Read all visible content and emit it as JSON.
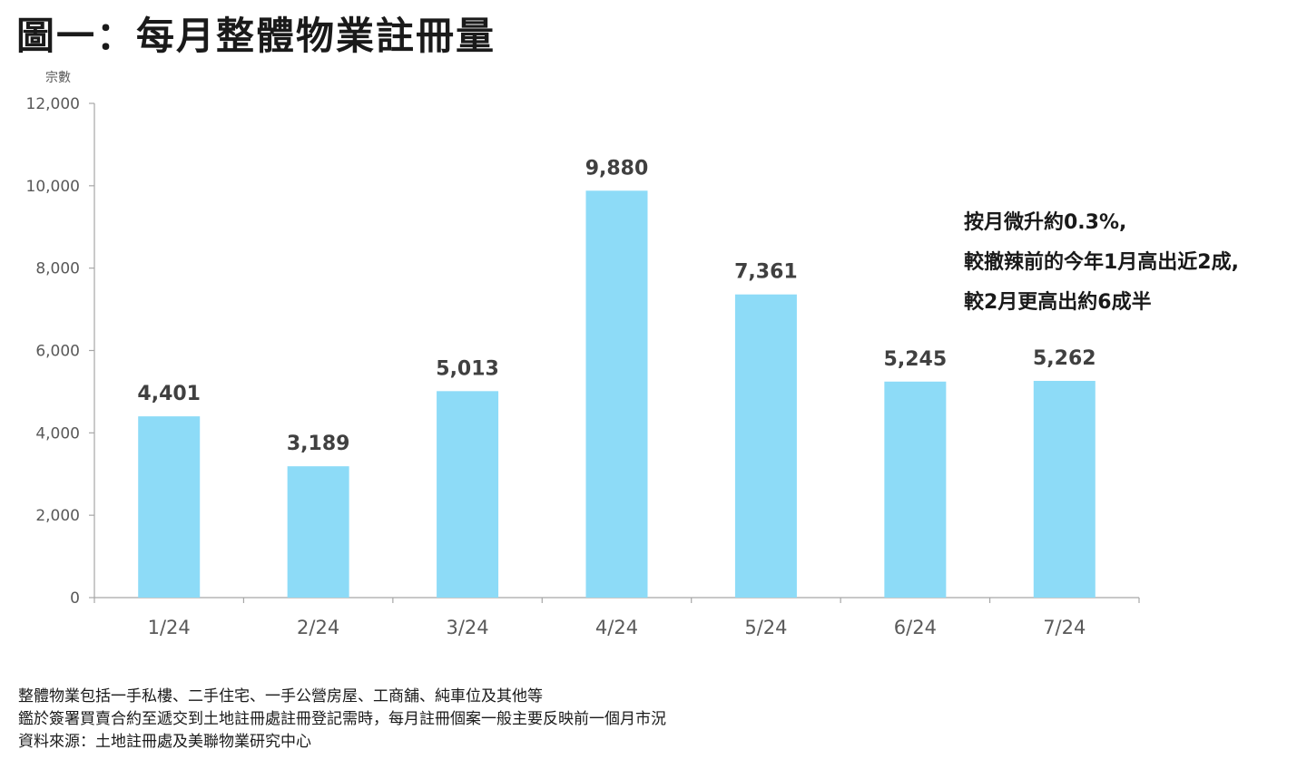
{
  "title": "圖一：每月整體物業註冊量",
  "annotation": {
    "lines": [
      "按月微升約0.3%,",
      "較撤辣前的今年1月高出近2成,",
      "較2月更高出約6成半"
    ]
  },
  "notes": [
    "整體物業包括一手私樓、二手住宅、一手公營房屋、工商舖、純車位及其他等",
    "鑑於簽署買賣合約至遞交到土地註冊處註冊登記需時，每月註冊個案一般主要反映前一個月市況",
    "資料來源：土地註冊處及美聯物業研究中心"
  ],
  "colors": {
    "bar": "#8ddbf7",
    "axis": "#a6a6a6",
    "tick_text": "#595959",
    "label_text": "#404040"
  },
  "chart_data": {
    "type": "bar",
    "categories": [
      "1/24",
      "2/24",
      "3/24",
      "4/24",
      "5/24",
      "6/24",
      "7/24"
    ],
    "values": [
      4401,
      3189,
      5013,
      9880,
      7361,
      5245,
      5262
    ],
    "value_labels": [
      "4,401",
      "3,189",
      "5,013",
      "9,880",
      "7,361",
      "5,245",
      "5,262"
    ],
    "title": "",
    "xlabel": "",
    "ylabel": "宗數",
    "ylim": [
      0,
      12000
    ],
    "yticks": [
      0,
      2000,
      4000,
      6000,
      8000,
      10000,
      12000
    ],
    "ytick_labels": [
      "0",
      "2,000",
      "4,000",
      "6,000",
      "8,000",
      "10,000",
      "12,000"
    ],
    "grid": false,
    "legend": "none"
  }
}
